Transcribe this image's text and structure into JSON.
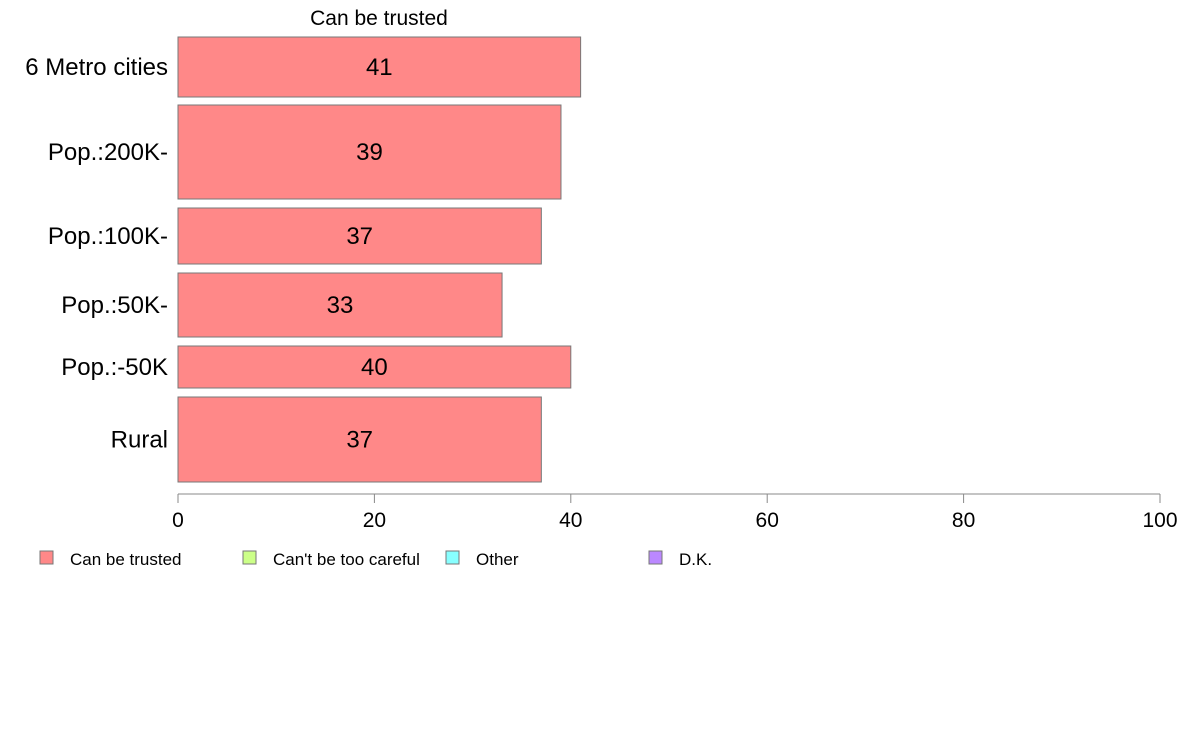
{
  "chart_data": {
    "type": "bar",
    "orientation": "horizontal",
    "title": "Can be trusted",
    "categories": [
      "6 Metro cities",
      "Pop.:200K-",
      "Pop.:100K-",
      "Pop.:50K-",
      "Pop.:-50K",
      "Rural"
    ],
    "series": [
      {
        "name": "Can be trusted",
        "values": [
          41,
          39,
          37,
          33,
          40,
          37
        ],
        "color": "#ff8888"
      }
    ],
    "xlim": [
      0,
      100
    ],
    "xticks": [
      0,
      20,
      40,
      60,
      80,
      100
    ],
    "legend": {
      "placement": "bottom-left",
      "entries": [
        {
          "label": "Can be trusted",
          "color": "#ff8888"
        },
        {
          "label": "Can't be too careful",
          "color": "#ccff88"
        },
        {
          "label": "Other",
          "color": "#88ffff"
        },
        {
          "label": "D.K.",
          "color": "#bb88ff"
        }
      ]
    },
    "grid": false
  }
}
